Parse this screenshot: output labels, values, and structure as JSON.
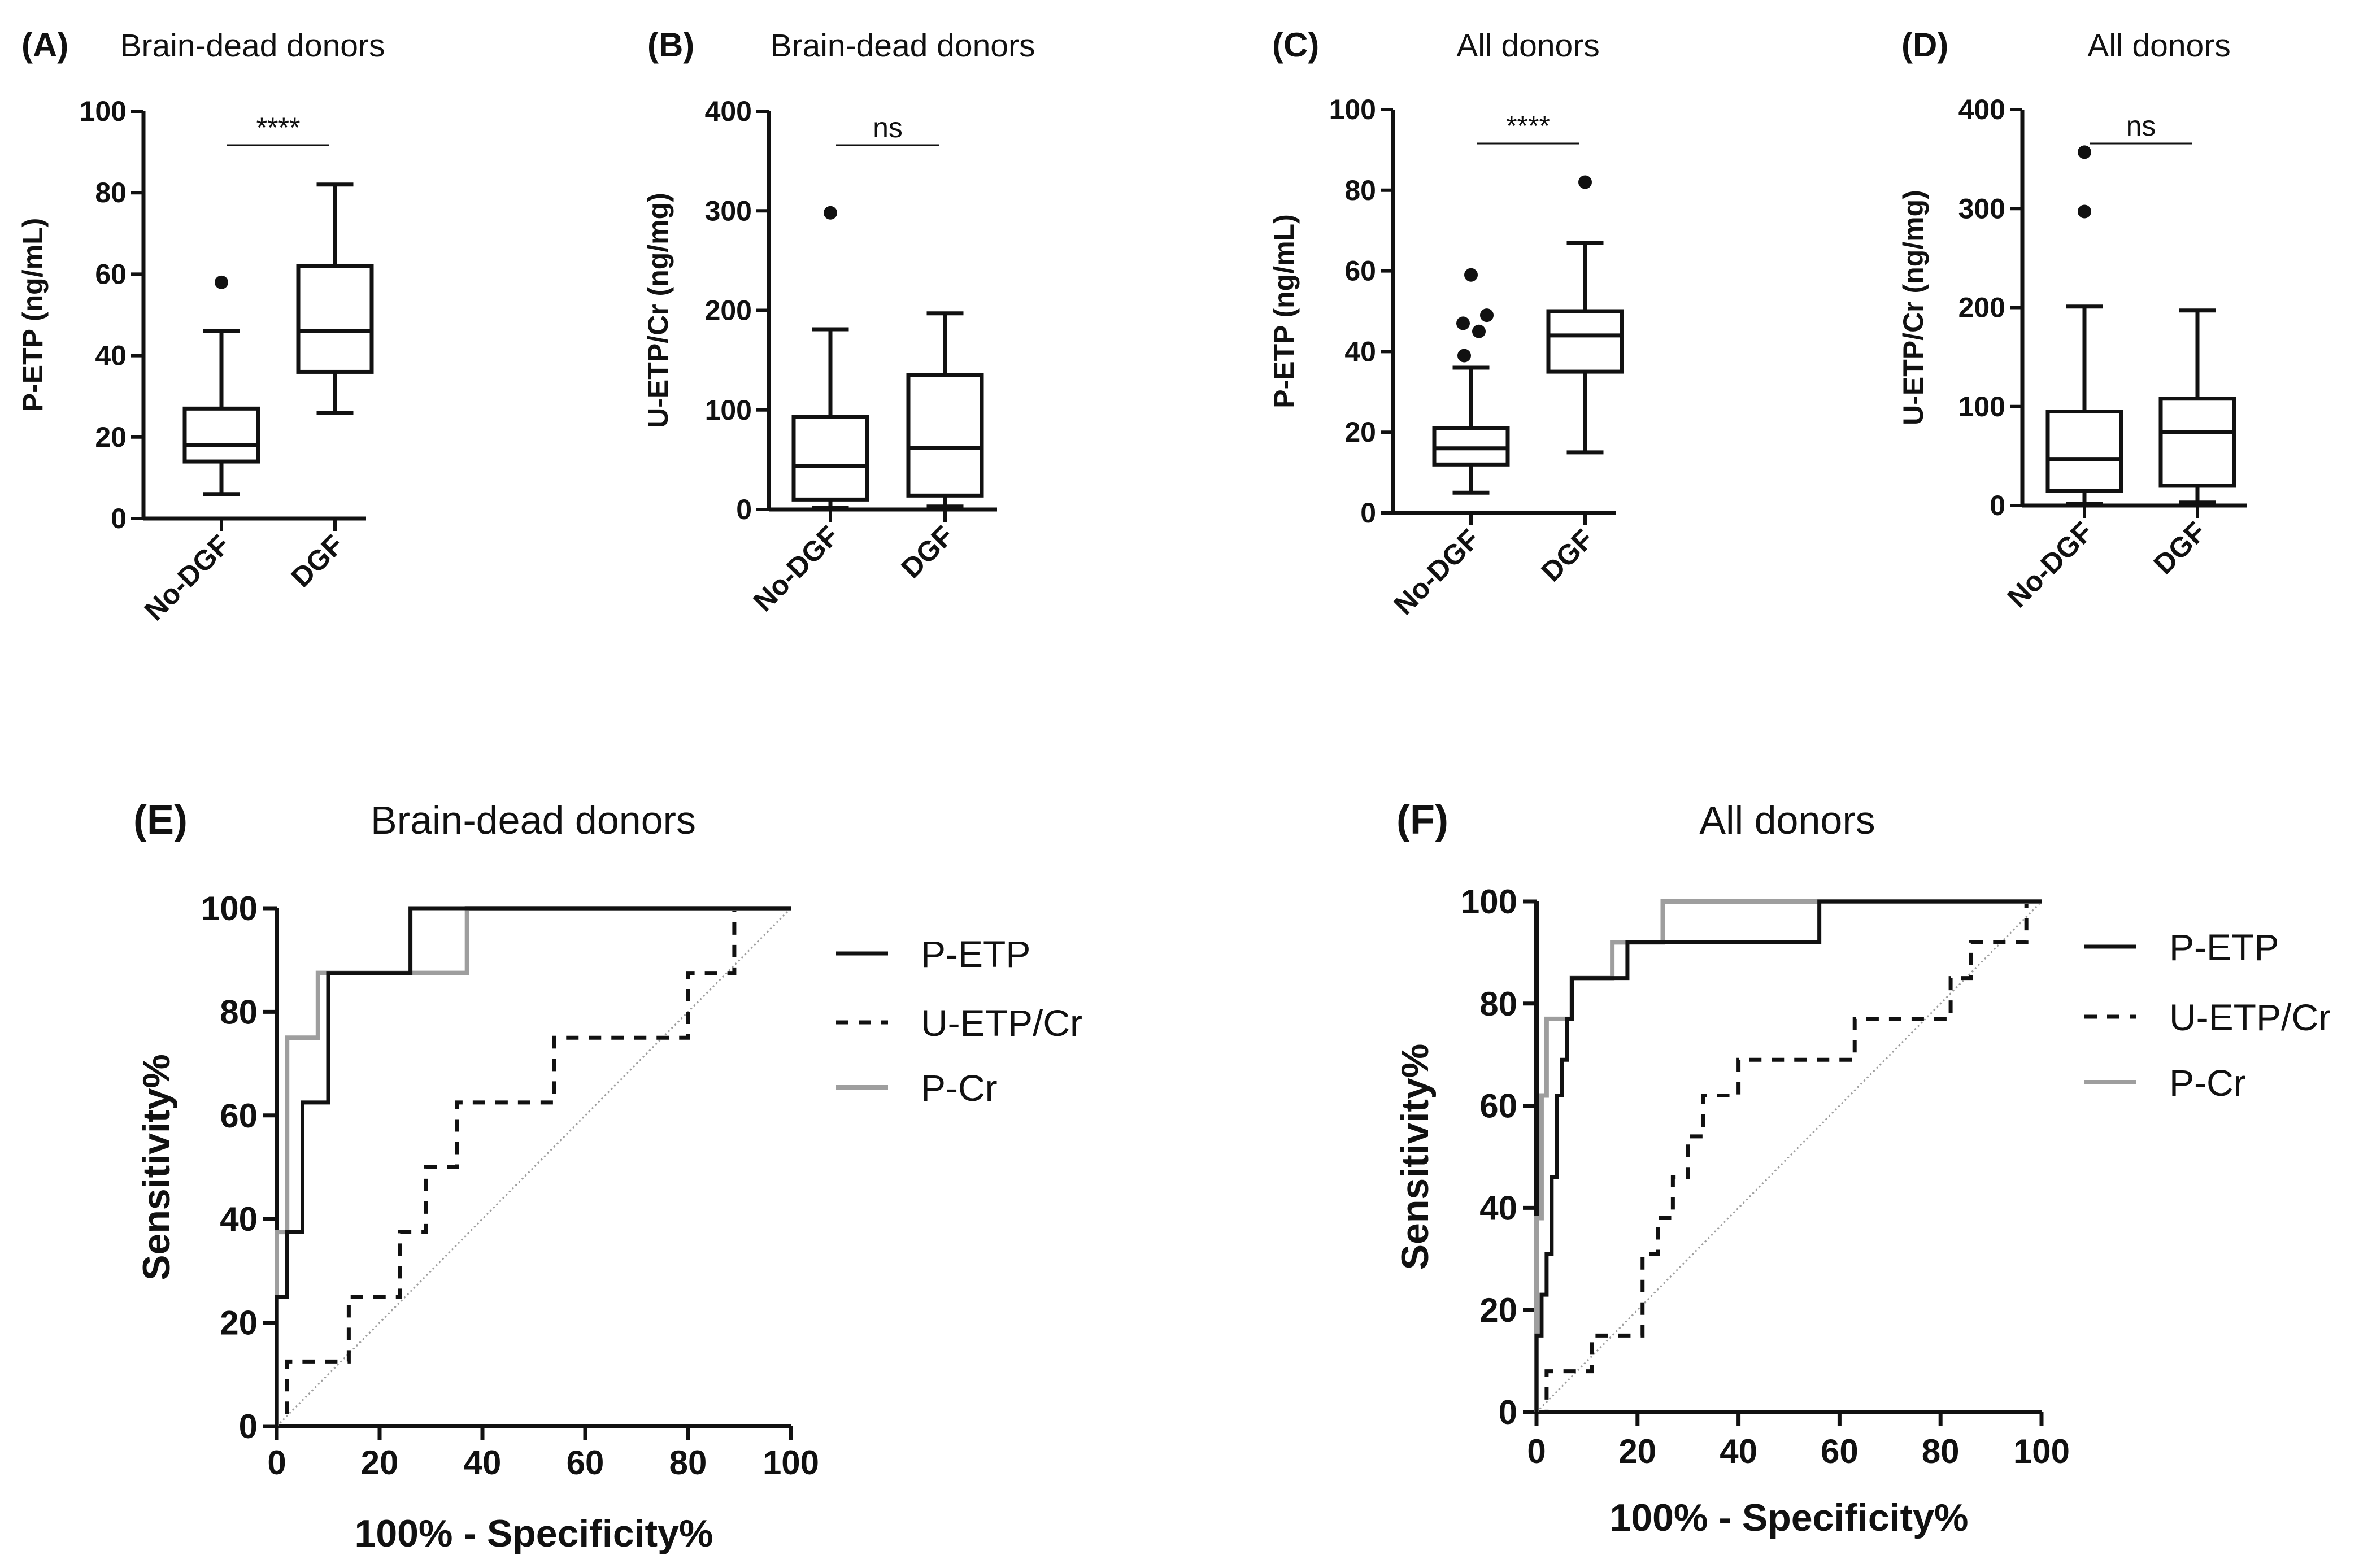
{
  "chart_data": [
    {
      "type": "box",
      "panel": "(A)",
      "title": "Brain-dead donors",
      "ylabel": "P-ETP (ng/mL)",
      "ylim": [
        0,
        100
      ],
      "yticks": [
        0,
        20,
        40,
        60,
        80,
        100
      ],
      "categories": [
        "No-DGF",
        "DGF"
      ],
      "boxes": [
        {
          "min": 6,
          "q1": 14,
          "median": 18,
          "q3": 27,
          "max": 46,
          "outliers": [
            58
          ]
        },
        {
          "min": 26,
          "q1": 36,
          "median": 46,
          "q3": 62,
          "max": 82,
          "outliers": []
        }
      ],
      "significance": "****"
    },
    {
      "type": "box",
      "panel": "(B)",
      "title": "Brain-dead donors",
      "ylabel": "U-ETP/Cr (ng/mg)",
      "ylim": [
        0,
        400
      ],
      "yticks": [
        0,
        100,
        200,
        300,
        400
      ],
      "categories": [
        "No-DGF",
        "DGF"
      ],
      "boxes": [
        {
          "min": 2,
          "q1": 10,
          "median": 44,
          "q3": 93,
          "max": 181,
          "outliers": [
            298
          ]
        },
        {
          "min": 3,
          "q1": 14,
          "median": 62,
          "q3": 135,
          "max": 197,
          "outliers": []
        }
      ],
      "significance": "ns"
    },
    {
      "type": "box",
      "panel": "(C)",
      "title": "All donors",
      "ylabel": "P-ETP (ng/mL)",
      "ylim": [
        0,
        100
      ],
      "yticks": [
        0,
        20,
        40,
        60,
        80,
        100
      ],
      "categories": [
        "No-DGF",
        "DGF"
      ],
      "boxes": [
        {
          "min": 5,
          "q1": 12,
          "median": 16,
          "q3": 21,
          "max": 36,
          "outliers": [
            39,
            45,
            47,
            49,
            59
          ]
        },
        {
          "min": 15,
          "q1": 35,
          "median": 44,
          "q3": 50,
          "max": 67,
          "outliers": [
            82
          ]
        }
      ],
      "significance": "****"
    },
    {
      "type": "box",
      "panel": "(D)",
      "title": "All donors",
      "ylabel": "U-ETP/Cr (ng/mg)",
      "ylim": [
        0,
        400
      ],
      "yticks": [
        0,
        100,
        200,
        300,
        400
      ],
      "categories": [
        "No-DGF",
        "DGF"
      ],
      "boxes": [
        {
          "min": 2,
          "q1": 15,
          "median": 47,
          "q3": 95,
          "max": 201,
          "outliers": [
            297,
            357
          ]
        },
        {
          "min": 3,
          "q1": 20,
          "median": 74,
          "q3": 108,
          "max": 197,
          "outliers": []
        }
      ],
      "significance": "ns"
    },
    {
      "type": "line",
      "panel": "(E)",
      "title": "Brain-dead donors",
      "xlabel": "100% - Specificity%",
      "ylabel": "Sensitivity%",
      "xlim": [
        0,
        100
      ],
      "ylim": [
        0,
        100
      ],
      "xticks": [
        0,
        20,
        40,
        60,
        80,
        100
      ],
      "yticks": [
        0,
        20,
        40,
        60,
        80,
        100
      ],
      "series": [
        {
          "name": "P-ETP",
          "color": "#111111",
          "dash": "solid",
          "x": [
            0,
            0,
            2,
            2,
            5,
            5,
            10,
            10,
            26,
            26,
            37,
            37,
            100
          ],
          "y": [
            0,
            25,
            25,
            37.5,
            37.5,
            62.5,
            62.5,
            87.5,
            87.5,
            100,
            100,
            100,
            100
          ]
        },
        {
          "name": "U-ETP/Cr",
          "color": "#111111",
          "dash": "dashed",
          "x": [
            0,
            2,
            2,
            14,
            14,
            24,
            24,
            29,
            29,
            35,
            35,
            39,
            39,
            54,
            54,
            80,
            80,
            89,
            89,
            100
          ],
          "y": [
            0,
            0,
            12.5,
            12.5,
            25,
            25,
            37.5,
            37.5,
            50,
            50,
            62.5,
            62.5,
            62.5,
            62.5,
            75,
            75,
            87.5,
            87.5,
            100,
            100
          ]
        },
        {
          "name": "P-Cr",
          "color": "#9e9e9e",
          "dash": "solid",
          "x": [
            0,
            0,
            2,
            2,
            5,
            5,
            8,
            8,
            37,
            37,
            100
          ],
          "y": [
            0,
            37.5,
            37.5,
            75,
            75,
            75,
            75,
            87.5,
            87.5,
            100,
            100
          ]
        },
        {
          "name": "reference",
          "color": "#9e9e9e",
          "dash": "dotted",
          "x": [
            0,
            100
          ],
          "y": [
            0,
            100
          ]
        }
      ],
      "legend": [
        "P-ETP",
        "U-ETP/Cr",
        "P-Cr"
      ]
    },
    {
      "type": "line",
      "panel": "(F)",
      "title": "All donors",
      "xlabel": "100% - Specificity%",
      "ylabel": "Sensitivity%",
      "xlim": [
        0,
        100
      ],
      "ylim": [
        0,
        100
      ],
      "xticks": [
        0,
        20,
        40,
        60,
        80,
        100
      ],
      "yticks": [
        0,
        20,
        40,
        60,
        80,
        100
      ],
      "series": [
        {
          "name": "P-ETP",
          "color": "#111111",
          "dash": "solid",
          "x": [
            0,
            0,
            1,
            1,
            2,
            2,
            3,
            3,
            4,
            4,
            5,
            5,
            6,
            6,
            7,
            7,
            16,
            16,
            18,
            18,
            25,
            25,
            56,
            56,
            100
          ],
          "y": [
            0,
            15,
            15,
            23,
            23,
            31,
            31,
            46,
            46,
            62,
            62,
            69,
            69,
            77,
            77,
            85,
            85,
            85,
            85,
            92,
            92,
            92,
            92,
            100,
            100
          ]
        },
        {
          "name": "U-ETP/Cr",
          "color": "#111111",
          "dash": "dashed",
          "x": [
            0,
            2,
            2,
            4,
            4,
            11,
            11,
            15,
            15,
            21,
            21,
            24,
            24,
            27,
            27,
            30,
            30,
            33,
            33,
            35,
            35,
            40,
            40,
            45,
            45,
            63,
            63,
            82,
            82,
            86,
            86,
            92,
            92,
            97,
            97,
            100
          ],
          "y": [
            0,
            0,
            8,
            8,
            8,
            8,
            15,
            15,
            15,
            15,
            31,
            31,
            38,
            38,
            46,
            46,
            54,
            54,
            62,
            62,
            62,
            62,
            69,
            69,
            69,
            69,
            77,
            77,
            85,
            85,
            92,
            92,
            92,
            92,
            100,
            100
          ]
        },
        {
          "name": "P-Cr",
          "color": "#9e9e9e",
          "dash": "solid",
          "x": [
            0,
            0,
            1,
            1,
            2,
            2,
            7,
            7,
            15,
            15,
            25,
            25,
            100
          ],
          "y": [
            0,
            38,
            38,
            62,
            62,
            77,
            77,
            85,
            85,
            92,
            92,
            100,
            100
          ]
        },
        {
          "name": "reference",
          "color": "#9e9e9e",
          "dash": "dotted",
          "x": [
            0,
            100
          ],
          "y": [
            0,
            100
          ]
        }
      ],
      "legend": [
        "P-ETP",
        "U-ETP/Cr",
        "P-Cr"
      ]
    }
  ]
}
